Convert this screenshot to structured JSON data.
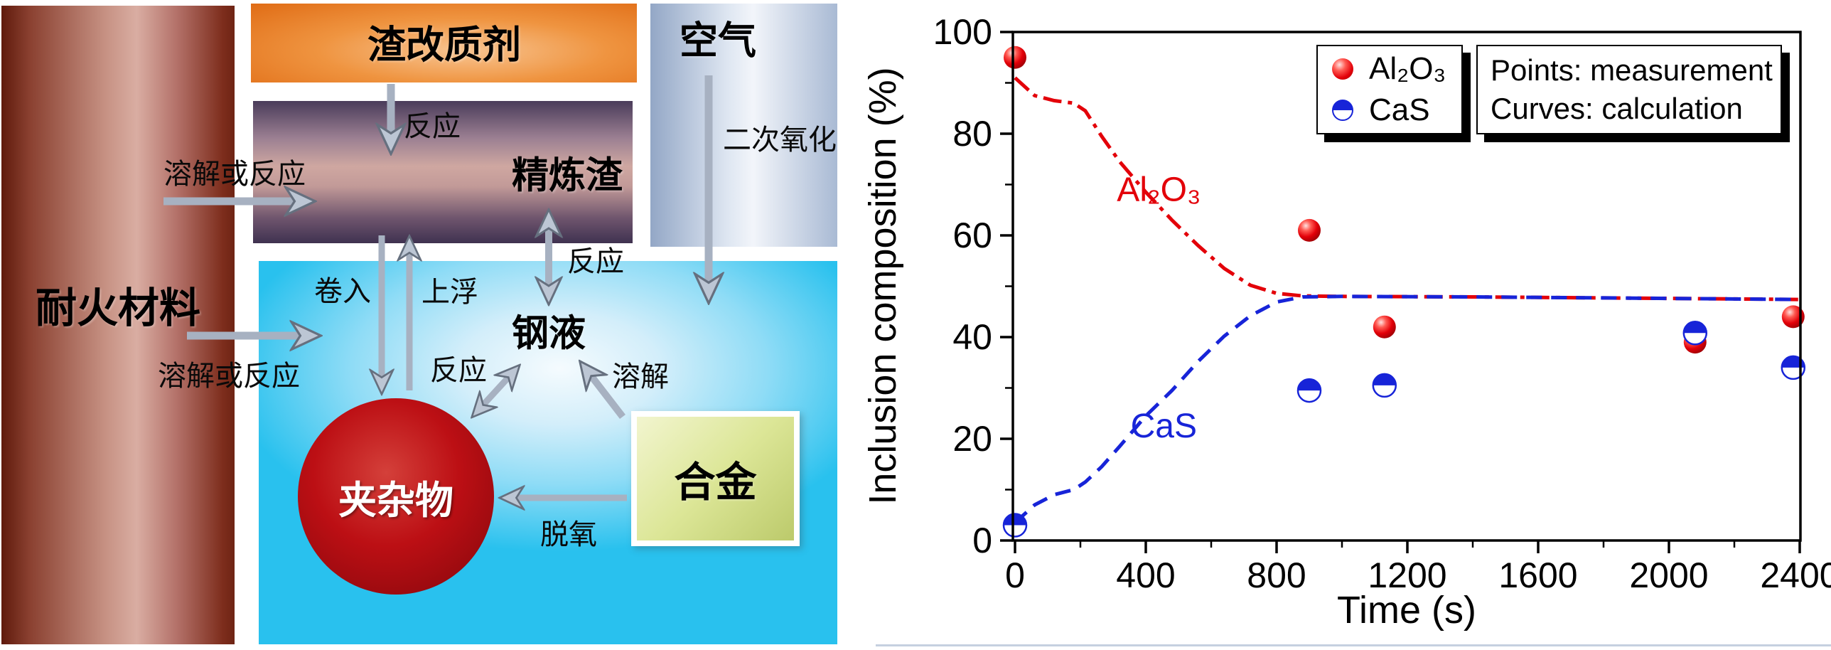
{
  "diagram": {
    "boxes": {
      "refractory": {
        "label": "耐火材料"
      },
      "slag_modifier": {
        "label": "渣改质剂"
      },
      "refining_slag": {
        "label": "精炼渣"
      },
      "air": {
        "label": "空气"
      },
      "liquid_steel": {
        "label": "钢液"
      },
      "inclusion": {
        "label": "夹杂物"
      },
      "alloy": {
        "label": "合金"
      }
    },
    "labels": {
      "reaction_slagmod": "反应",
      "secondary_oxidation": "二次氧化",
      "dissolve_or_react_upper": "溶解或反应",
      "dissolve_or_react_lower": "溶解或反应",
      "entrainment": "卷入",
      "flotation": "上浮",
      "reaction_slag_steel": "反应",
      "dissolution": "溶解",
      "reaction_incl_steel": "反应",
      "deoxidation": "脱氧"
    }
  },
  "chart_data": {
    "type": "scatter",
    "title": "",
    "xlabel": "Time (s)",
    "ylabel": "Inclusion composition (%)",
    "xlim": [
      0,
      2400
    ],
    "ylim": [
      0,
      100
    ],
    "xticks": [
      0,
      400,
      800,
      1200,
      1600,
      2000,
      2400
    ],
    "xticks_minor": [
      200,
      600,
      1000,
      1400,
      1800,
      2200
    ],
    "yticks": [
      0,
      20,
      40,
      60,
      80,
      100
    ],
    "yticks_minor": [
      10,
      30,
      50,
      70,
      90
    ],
    "grid": false,
    "legend_position": "top-right",
    "colors": {
      "al2o3_red": "#e30009",
      "cas_blue": "#1724d8"
    },
    "series": [
      {
        "name": "Al₂O₃",
        "role": "measurement",
        "marker": "red-ball",
        "color": "#e30009",
        "points": [
          [
            0,
            95
          ],
          [
            900,
            61
          ],
          [
            1130,
            42
          ],
          [
            2080,
            39
          ],
          [
            2380,
            44
          ]
        ]
      },
      {
        "name": "CaS",
        "role": "measurement",
        "marker": "blue-half",
        "color": "#1724d8",
        "points": [
          [
            0,
            3
          ],
          [
            900,
            29.5
          ],
          [
            1130,
            30.5
          ],
          [
            2080,
            40.8
          ],
          [
            2380,
            34
          ]
        ]
      },
      {
        "name": "Al₂O₃ calculation",
        "role": "calculation",
        "linestyle": "dash-dot",
        "color": "#e30009",
        "points": [
          [
            0,
            91
          ],
          [
            60,
            87.5
          ],
          [
            120,
            86.5
          ],
          [
            180,
            86
          ],
          [
            215,
            84.5
          ],
          [
            265,
            79.5
          ],
          [
            320,
            74.5
          ],
          [
            400,
            68.5
          ],
          [
            480,
            63
          ],
          [
            560,
            58
          ],
          [
            640,
            53.5
          ],
          [
            720,
            50.2
          ],
          [
            800,
            48.6
          ],
          [
            880,
            48.1
          ],
          [
            1000,
            48
          ],
          [
            1400,
            47.9
          ],
          [
            1800,
            47.7
          ],
          [
            2400,
            47.4
          ]
        ]
      },
      {
        "name": "CaS calculation",
        "role": "calculation",
        "linestyle": "dash",
        "color": "#1724d8",
        "points": [
          [
            0,
            3.5
          ],
          [
            60,
            7
          ],
          [
            120,
            9
          ],
          [
            180,
            10
          ],
          [
            215,
            11.5
          ],
          [
            265,
            14.5
          ],
          [
            320,
            18.5
          ],
          [
            400,
            24.5
          ],
          [
            480,
            29.5
          ],
          [
            560,
            35.2
          ],
          [
            640,
            40.2
          ],
          [
            720,
            44.2
          ],
          [
            800,
            46.9
          ],
          [
            880,
            47.9
          ],
          [
            1000,
            48
          ],
          [
            1400,
            47.9
          ],
          [
            1800,
            47.7
          ],
          [
            2400,
            47.4
          ]
        ]
      }
    ],
    "annotations": [
      {
        "text": "Al₂O₃",
        "color": "#e30009",
        "x": 440,
        "y": 69
      },
      {
        "text": "CaS",
        "color": "#1724d8",
        "x": 455,
        "y": 22.5
      }
    ],
    "legend": {
      "items": [
        {
          "marker": "red-ball",
          "label": "Al₂O₃"
        },
        {
          "marker": "blue-half",
          "label": "CaS"
        }
      ],
      "note_lines": [
        "Points: measurement",
        "Curves: calculation"
      ]
    }
  }
}
